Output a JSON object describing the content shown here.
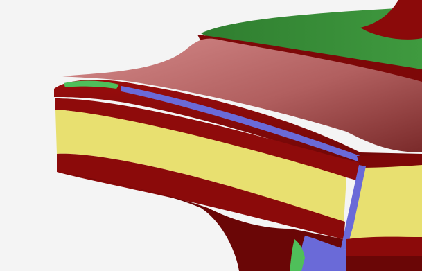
{
  "scene": {
    "background_color": "#f4f4f4",
    "segment_colors": {
      "body": "#8b0a0a",
      "body_dark": "#6a0606",
      "highlight": "#b86060",
      "yellow": "#e8e070",
      "blue": "#6a6ad8",
      "green": "#3a8a3a",
      "light_green": "#4fbf5a"
    }
  }
}
